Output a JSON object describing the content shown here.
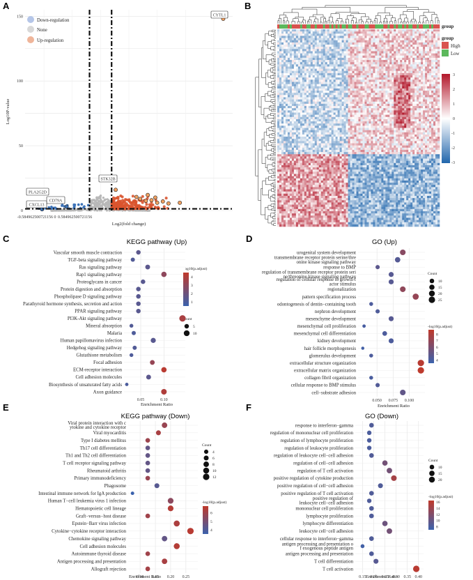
{
  "panel_labels": [
    "A",
    "B",
    "C",
    "D",
    "E",
    "F"
  ],
  "colors": {
    "down": "#3d73b8",
    "up": "#d7553b",
    "none": "#bdbdbd",
    "high": "#d9534f",
    "low": "#5cb85c",
    "grid": "#e3e3e3",
    "pgrad_hi": "#c0392b",
    "pgrad_lo": "#3b62ad"
  },
  "chart_data": [
    {
      "type": "scatter",
      "id": "volcano",
      "xlabel": "Log2(fold change)",
      "ylabel": "Log10P-value",
      "yticks": [
        0,
        50,
        100,
        150
      ],
      "xticks": [
        "-0.584962500721156",
        "0",
        "0.584962500721156"
      ],
      "legend": [
        "Down-regulation",
        "None",
        "Up-regulation"
      ],
      "xlim": [
        -4,
        7
      ],
      "ylim": [
        0,
        155
      ],
      "threshold_x": 0.585,
      "threshold_y": 1.3,
      "labels": [
        {
          "gene": "CYTL1",
          "x": 6.5,
          "y": 148
        },
        {
          "gene": "STK32B",
          "x": 0.8,
          "y": 16
        },
        {
          "gene": "PLA2G2D",
          "x": -3.5,
          "y": 6
        },
        {
          "gene": "CD79A",
          "x": -1.8,
          "y": 3
        },
        {
          "gene": "CXCL13",
          "x": -3.1,
          "y": 1
        }
      ]
    },
    {
      "type": "heatmap",
      "id": "heatmap",
      "legend_title": "group",
      "groups": [
        "High",
        "Low"
      ],
      "scale_ticks": [
        "3",
        "2",
        "1",
        "0",
        "-1",
        "-2",
        "-3"
      ],
      "scale_range": [
        -3,
        3
      ]
    },
    {
      "type": "scatter",
      "id": "kegg-up",
      "title": "KEGG pathway (Up)",
      "xlabel": "Enrichment Ratio",
      "xticks": [
        0.05,
        0.1
      ],
      "xlim": [
        0.02,
        0.14
      ],
      "color_title": "-log10(p.adjust)",
      "color_ticks": [
        4,
        3,
        2,
        1
      ],
      "color_range": [
        0.5,
        4.5
      ],
      "size_title": "Count",
      "size_ticks": [
        5,
        10
      ],
      "terms": [
        "Vascular smooth muscle contraction",
        "TGF-beta signaling pathway",
        "Ras signaling pathway",
        "Rap1 signaling pathway",
        "Proteoglycans in cancer",
        "Protein digestion and absorption",
        "Phospholipase D signaling pathway",
        "Parathyroid hormone synthesis, secretion and action",
        "PPAR signaling pathway",
        "PI3K-Akt signaling pathway",
        "Mineral absorption",
        "Malaria",
        "Human papillomavirus infection",
        "Hedgehog signaling pathway",
        "Glutathione metabolism",
        "Focal adhesion",
        "ECM-receptor interaction",
        "Cell adhesion molecules",
        "Biosynthesis of unsaturated fatty acids",
        "Axon guidance"
      ],
      "x": [
        0.045,
        0.033,
        0.065,
        0.1,
        0.055,
        0.045,
        0.045,
        0.045,
        0.045,
        0.14,
        0.03,
        0.035,
        0.077,
        0.037,
        0.03,
        0.075,
        0.1,
        0.067,
        0.02,
        0.1
      ],
      "size": [
        5,
        4,
        6,
        8,
        5,
        5,
        5,
        5,
        5,
        13,
        3,
        4,
        7,
        4,
        3,
        6,
        8,
        6,
        2,
        9
      ],
      "color": [
        1.5,
        1.2,
        1.5,
        3.0,
        1.4,
        1.4,
        1.4,
        1.4,
        1.4,
        3.8,
        1.2,
        1.1,
        1.4,
        1.2,
        1.1,
        3.2,
        4.3,
        1.5,
        1.0,
        4.0
      ]
    },
    {
      "type": "scatter",
      "id": "go-up",
      "title": "GO (Up)",
      "xlabel": "Enrichment Ratio",
      "xticks": [
        0.05,
        0.075,
        0.1
      ],
      "xtick_labels": [
        "0.050",
        "0.075",
        "0.100"
      ],
      "xlim": [
        0.025,
        0.12
      ],
      "color_title": "-log10(p.adjust)",
      "color_ticks": [
        8,
        7,
        6,
        5,
        4
      ],
      "color_range": [
        3.5,
        8.7
      ],
      "size_title": "Count",
      "size_ticks": [
        10,
        15,
        20,
        25
      ],
      "terms": [
        "urogenital system development",
        "transmembrane receptor protein serine/threonine kinase signaling pathway",
        "response to BMP",
        "regulation of transmembrane receptor protein serine/threonine kinase signaling pathway",
        "regulation of cellular response to growth factor stimulus",
        "regionalization",
        "pattern specification process",
        "odontogenesis of dentin−containing tooth",
        "nephron development",
        "mesenchyme development",
        "mesenchymal cell proliferation",
        "mesenchymal cell differentiation",
        "kidney development",
        "hair follicle morphogenesis",
        "glomerulus development",
        "extracellular structure organization",
        "extracellular matrix organization",
        "collagen fibril organization",
        "cellular response to BMP stimulus",
        "cell−substrate adhesion"
      ],
      "x": [
        0.09,
        0.082,
        0.051,
        0.072,
        0.072,
        0.09,
        0.11,
        0.041,
        0.051,
        0.072,
        0.03,
        0.062,
        0.072,
        0.028,
        0.041,
        0.118,
        0.118,
        0.041,
        0.051,
        0.09
      ],
      "size": [
        18,
        16,
        8,
        13,
        13,
        18,
        22,
        6,
        8,
        13,
        4,
        11,
        13,
        3,
        6,
        25,
        25,
        6,
        8,
        18
      ],
      "color": [
        6.5,
        4.5,
        4.8,
        4.6,
        4.6,
        6.8,
        7.0,
        4.2,
        4.3,
        4.6,
        4.0,
        4.2,
        4.2,
        3.8,
        4.2,
        8.4,
        8.6,
        4.1,
        4.4,
        5.0
      ]
    },
    {
      "type": "scatter",
      "id": "kegg-down",
      "title": "KEGG pathway (Down)",
      "xlabel": "Enrichment Ratio",
      "xticks": [
        0.1,
        0.15,
        0.2,
        0.25
      ],
      "xlim": [
        0.07,
        0.28
      ],
      "color_title": "-log10(p.adjust)",
      "color_ticks": [
        6,
        5,
        4
      ],
      "color_range": [
        3.5,
        6.8
      ],
      "size_title": "Count",
      "size_ticks": [
        4,
        6,
        8,
        10,
        12
      ],
      "terms": [
        "Viral protein interaction with cytokine and cytokine receptor",
        "Viral myocarditis",
        "Type I diabetes mellitus",
        "Th17 cell differentiation",
        "Th1 and Th2 cell differentiation",
        "T cell receptor signaling pathway",
        "Rheumatoid arthritis",
        "Primary immunodeficiency",
        "Phagosome",
        "Intestinal immune network for IgA production",
        "Human T−cell leukemia virus 1 infection",
        "Hematopoietic cell lineage",
        "Graft−versus−host disease",
        "Epstein−Barr virus infection",
        "Cytokine−cytokine receptor interaction",
        "Chemokine signaling pathway",
        "Cell adhesion molecules",
        "Autoimmune thyroid disease",
        "Antigen processing and presentation",
        "Allograft rejection"
      ],
      "x": [
        0.18,
        0.16,
        0.125,
        0.125,
        0.125,
        0.125,
        0.125,
        0.125,
        0.155,
        0.075,
        0.2,
        0.2,
        0.125,
        0.22,
        0.265,
        0.18,
        0.22,
        0.125,
        0.18,
        0.125
      ],
      "size": [
        8,
        6,
        5,
        5,
        5,
        5,
        5,
        5,
        6,
        2,
        9,
        9,
        5,
        10,
        12,
        8,
        10,
        5,
        8,
        5
      ],
      "color": [
        5.8,
        6.2,
        5.9,
        4.5,
        4.5,
        4.5,
        4.5,
        5.8,
        4.2,
        3.5,
        5.5,
        6.5,
        6.0,
        6.3,
        6.6,
        4.5,
        6.5,
        6.0,
        6.2,
        6.1
      ]
    },
    {
      "type": "scatter",
      "id": "go-down",
      "title": "GO (Down)",
      "xlabel": "Enrichment Ratio",
      "xticks": [
        0.15,
        0.2,
        0.25,
        0.3,
        0.35,
        0.4
      ],
      "xlim": [
        0.13,
        0.41
      ],
      "color_title": "-log10(p.adjust)",
      "color_ticks": [
        16,
        14,
        12,
        10,
        8
      ],
      "color_range": [
        7,
        16.5
      ],
      "size_title": "Count",
      "size_ticks": [
        10,
        15,
        20
      ],
      "terms": [
        "response to interferon−gamma",
        "regulation of mononuclear cell proliferation",
        "regulation of lymphocyte proliferation",
        "regulation of leukocyte proliferation",
        "regulation of leukocyte cell−cell adhesion",
        "regulation of cell−cell adhesion",
        "regulation of T cell activation",
        "positive regulation of cytokine production",
        "positive regulation of cell−cell adhesion",
        "positive regulation of T cell activation",
        "positive regulation of leukocyte cell−cell adhesion",
        "mononuclear cell proliferation",
        "lymphocyte proliferation",
        "lymphocyte differentiation",
        "leukocyte cell−cell adhesion",
        "cellular response to interferon−gamma",
        "antigen processing and presentation of exogenous peptide antigen",
        "antigen processing and presentation",
        "T cell differentiation",
        "T cell activation"
      ],
      "x": [
        0.19,
        0.18,
        0.18,
        0.18,
        0.19,
        0.25,
        0.27,
        0.29,
        0.23,
        0.19,
        0.18,
        0.19,
        0.19,
        0.25,
        0.27,
        0.19,
        0.15,
        0.19,
        0.21,
        0.39
      ],
      "size": [
        10,
        9,
        9,
        9,
        10,
        15,
        16,
        17,
        12,
        10,
        9,
        10,
        10,
        15,
        16,
        10,
        6,
        10,
        12,
        24
      ],
      "color": [
        8.5,
        8.2,
        8.2,
        8.2,
        8.6,
        11.0,
        11.0,
        14.5,
        8.5,
        8.5,
        8.4,
        8.4,
        8.4,
        10.5,
        11.0,
        8.5,
        7.5,
        8.5,
        9.0,
        16.0
      ]
    }
  ]
}
